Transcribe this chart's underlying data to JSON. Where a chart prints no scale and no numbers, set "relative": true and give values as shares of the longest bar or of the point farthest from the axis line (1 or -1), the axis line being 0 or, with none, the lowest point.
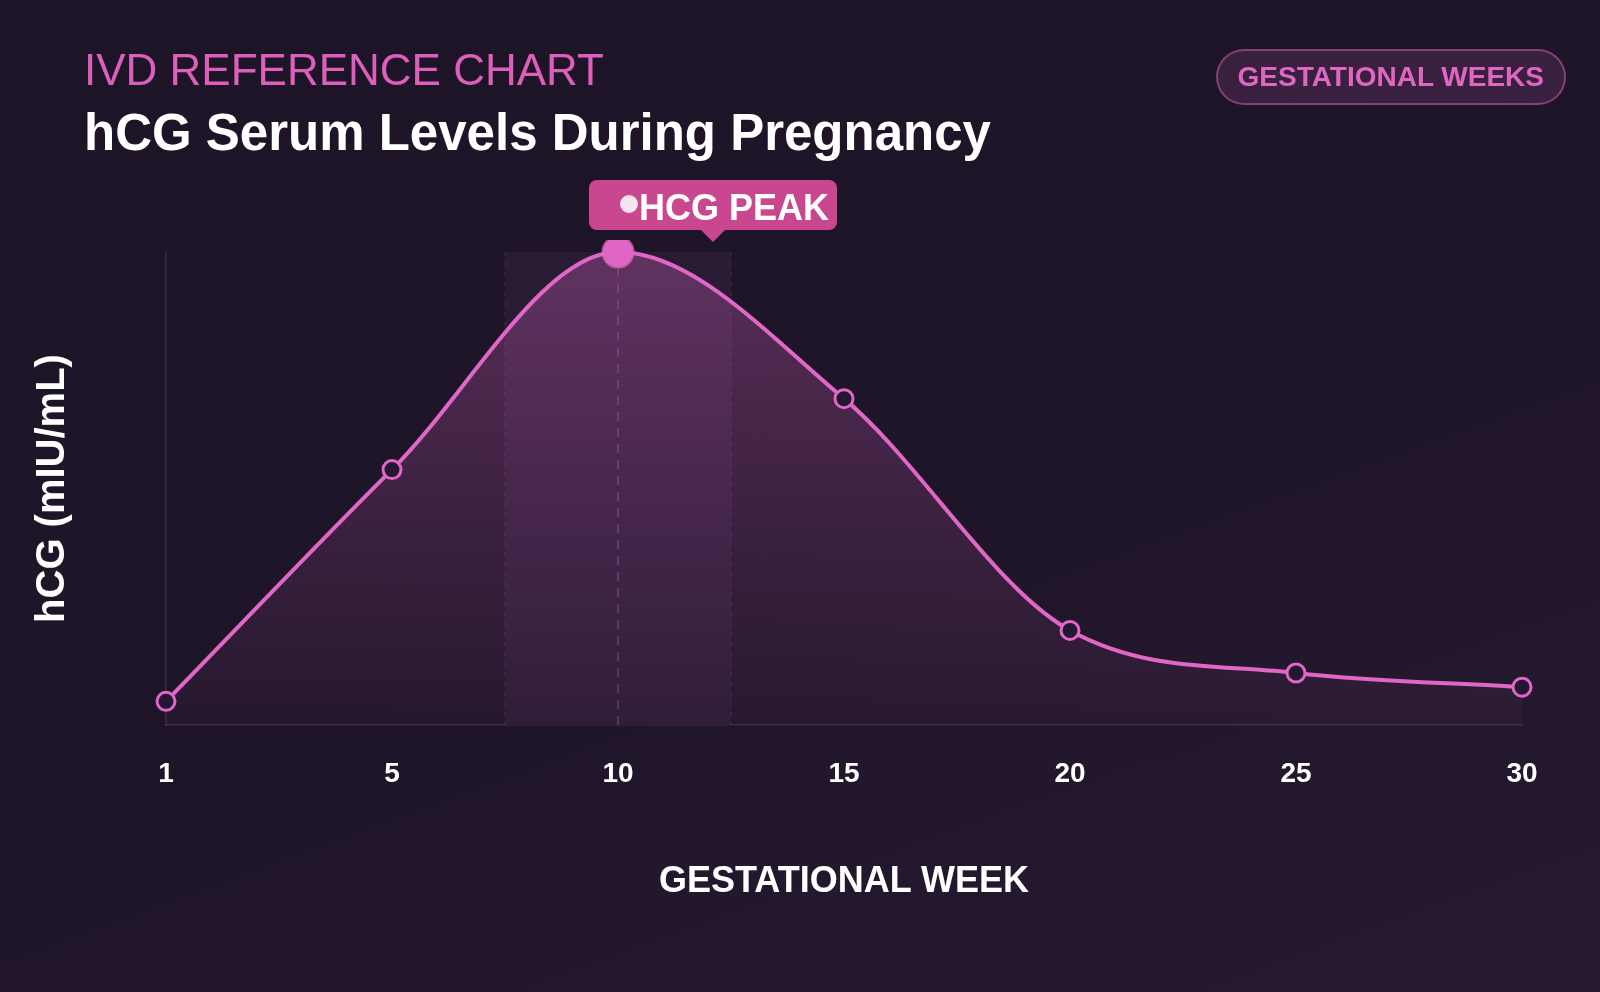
{
  "chart_data": {
    "type": "area",
    "title": "hCG Serum Levels During Pregnancy",
    "subtitle": "IVD REFERENCE CHART",
    "xlabel": "GESTATIONAL WEEK",
    "ylabel": "hCG (mIU/mL)",
    "categories": [
      "1",
      "5",
      "10",
      "15",
      "20",
      "25",
      "30"
    ],
    "series": [
      {
        "color": "#e067c5",
        "values": [
          0.05,
          0.54,
          1,
          0.69,
          0.2,
          0.11,
          0.08
        ]
      }
    ],
    "relative": true,
    "marker": "circle",
    "annotations": [
      "GESTATIONAL WEEKS",
      {
        "text": "HCG PEAK",
        "x": "10",
        "y": 1
      }
    ],
    "ref_lines": [
      {
        "axis": "x",
        "value": "10",
        "color": "#4b3659",
        "line_style": "dashed"
      }
    ],
    "bands": [
      {
        "axis": "x",
        "from": "10",
        "to": "10",
        "color": "#2a1b35"
      }
    ]
  }
}
